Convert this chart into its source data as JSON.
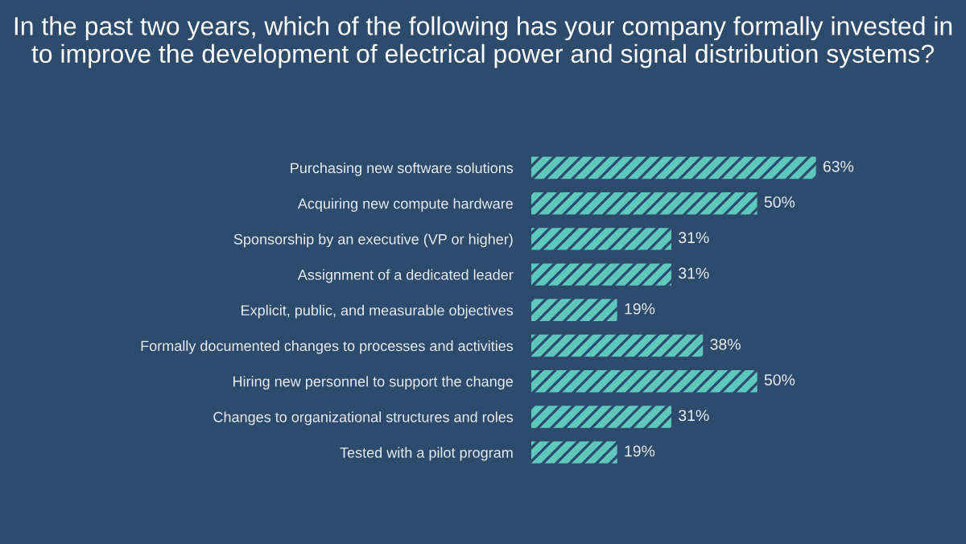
{
  "chart_data": {
    "type": "bar",
    "orientation": "horizontal",
    "title": "In the past two years, which of the following has your company formally invested in to improve the development of electrical power and signal distribution systems?",
    "categories": [
      "Purchasing new software solutions",
      "Acquiring new compute hardware",
      "Sponsorship by an executive (VP or higher)",
      "Assignment of a dedicated leader",
      "Explicit, public, and measurable objectives",
      "Formally documented changes to processes and activities",
      "Hiring new personnel to support the change",
      "Changes to organizational structures and roles",
      "Tested with a pilot program"
    ],
    "values": [
      63,
      50,
      31,
      31,
      19,
      38,
      50,
      31,
      19
    ],
    "value_labels": [
      "63%",
      "50%",
      "31%",
      "31%",
      "19%",
      "38%",
      "50%",
      "31%",
      "19%"
    ],
    "color": "#5ec8bf",
    "grid": false
  }
}
